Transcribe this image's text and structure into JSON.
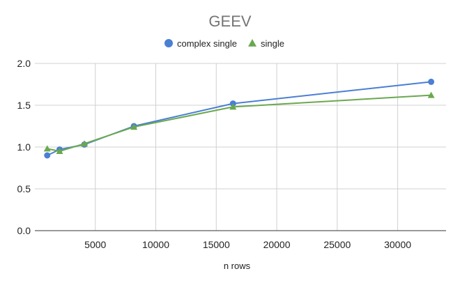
{
  "chart_data": {
    "type": "line",
    "title": "GEEV",
    "xlabel": "n rows",
    "ylabel": "",
    "xlim": [
      0,
      34000
    ],
    "ylim": [
      0,
      2.0
    ],
    "x_ticks": [
      "5000",
      "10000",
      "15000",
      "20000",
      "25000",
      "30000"
    ],
    "y_ticks": [
      "0.0",
      "0.5",
      "1.0",
      "1.5",
      "2.0"
    ],
    "grid": true,
    "legend_position": "top",
    "x": [
      1024,
      2048,
      4096,
      8192,
      16384,
      32768
    ],
    "series": [
      {
        "name": "complex single",
        "color": "#4a7fd4",
        "marker": "circle",
        "values": [
          0.9,
          0.97,
          1.03,
          1.25,
          1.52,
          1.78
        ]
      },
      {
        "name": "single",
        "color": "#6aa84f",
        "marker": "triangle",
        "values": [
          0.98,
          0.95,
          1.04,
          1.24,
          1.48,
          1.62
        ]
      }
    ]
  }
}
